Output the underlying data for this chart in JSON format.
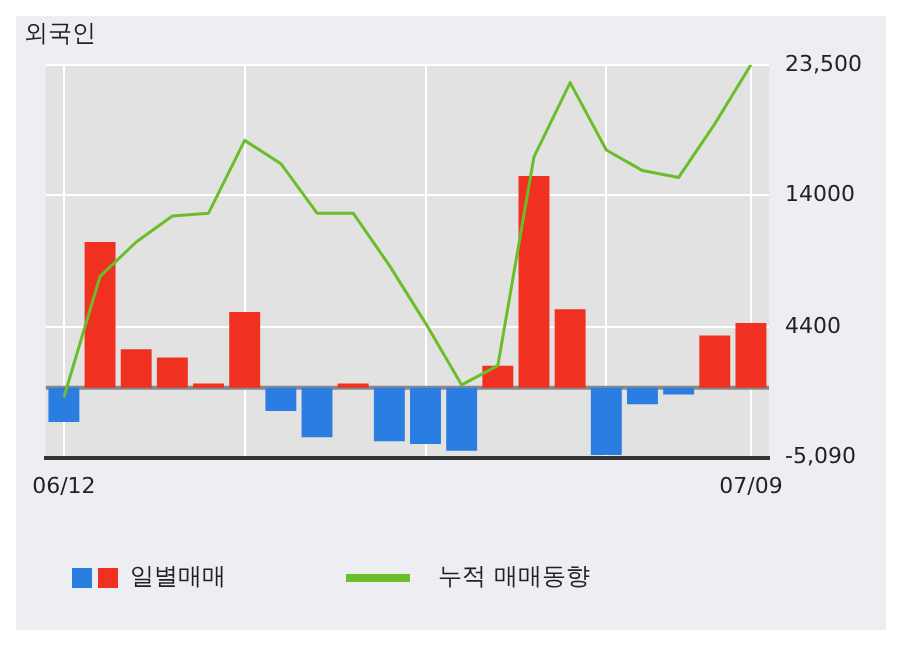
{
  "chart_data": {
    "type": "bar",
    "title": "외국인",
    "categories": [
      "06/12",
      null,
      null,
      null,
      null,
      null,
      null,
      null,
      null,
      null,
      null,
      null,
      null,
      null,
      null,
      null,
      null,
      null,
      null,
      "07/09"
    ],
    "series": [
      {
        "name": "일별매매",
        "colors": [
          "#2a7de1",
          "#f03020",
          "#f03020",
          "#f03020",
          "#f03020",
          "#f03020",
          "#2a7de1",
          "#2a7de1",
          "#f03020",
          "#2a7de1",
          "#2a7de1",
          "#2a7de1",
          "#f03020",
          "#f03020",
          "#f03020",
          "#2a7de1",
          "#2a7de1",
          "#2a7de1",
          "#f03020",
          "#f03020"
        ],
        "values": [
          -2500,
          10600,
          2800,
          2200,
          300,
          5500,
          -1700,
          -3600,
          300,
          -3900,
          -4100,
          -4600,
          1600,
          15400,
          5700,
          -4900,
          -1200,
          -500,
          3800,
          4700
        ]
      },
      {
        "name": "누적 매매동향",
        "type": "line",
        "color": "#6cbd2a",
        "values": [
          -700,
          8100,
          10600,
          12500,
          12700,
          18000,
          16300,
          12700,
          12700,
          8900,
          4700,
          200,
          1600,
          16800,
          22200,
          17300,
          15800,
          15300,
          19200,
          23500
        ]
      }
    ],
    "ylim": [
      -5090,
      23500
    ],
    "yticks": [
      {
        "value": -5090,
        "label": "-5,090"
      },
      4400,
      14000,
      {
        "value": 23500,
        "label": "23,500"
      }
    ],
    "grid": true,
    "legend": "bottom",
    "marker": "none"
  }
}
